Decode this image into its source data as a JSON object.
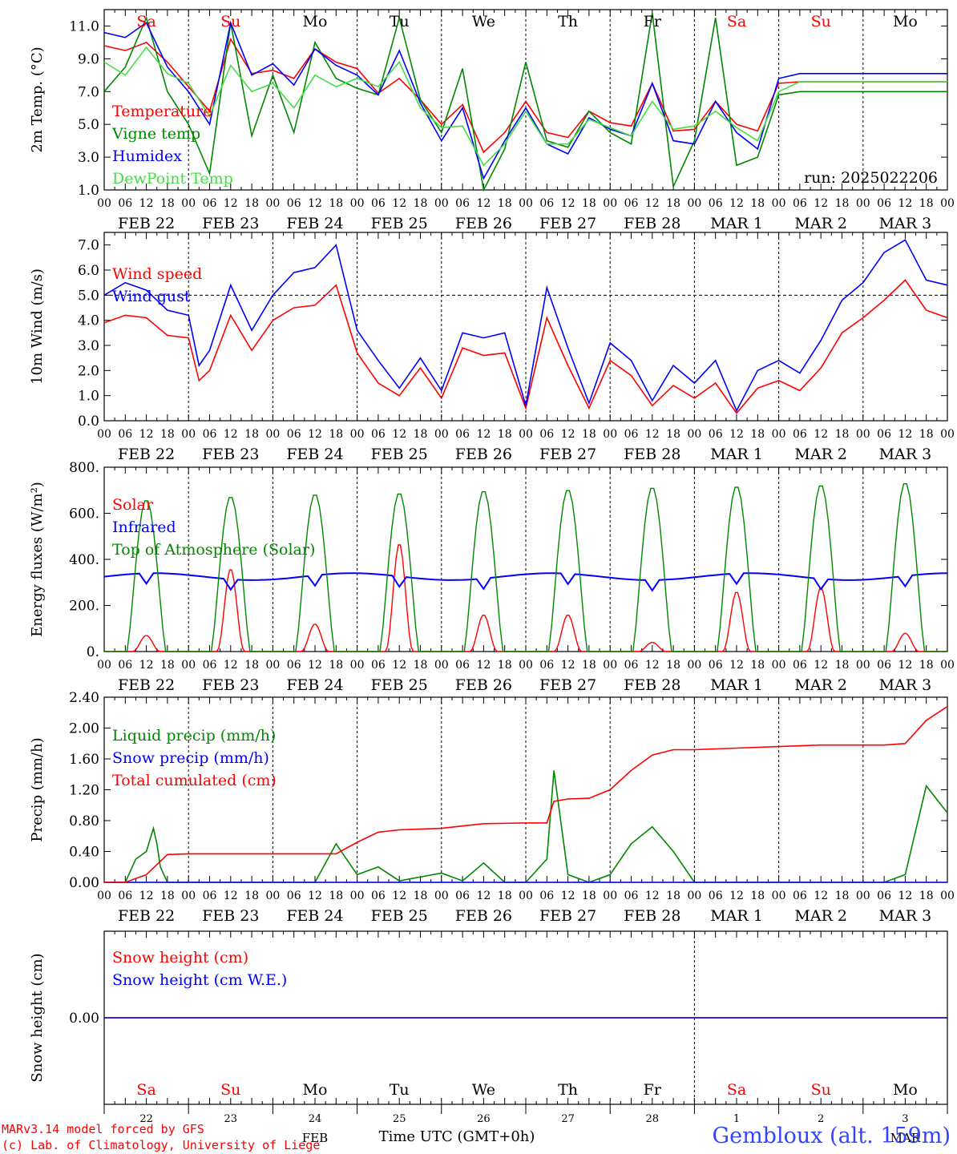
{
  "chart_data": [
    {
      "type": "line",
      "ylabel": "2m Temp. (°C)",
      "ylim": [
        1.0,
        12.0
      ],
      "yticks": [
        "1.0",
        "3.0",
        "5.0",
        "7.0",
        "9.0",
        "11.0"
      ],
      "grid": "vertical day lines",
      "annotation": "run: 2025022206",
      "legend_position": "left",
      "series": [
        {
          "name": "Temperature",
          "color": "#ff0000",
          "x": [
            0,
            6,
            12,
            18,
            24,
            30,
            36,
            42,
            48,
            54,
            60,
            66,
            72,
            78,
            84,
            90,
            96,
            102,
            108,
            114,
            120,
            126,
            132,
            138,
            144,
            150,
            156,
            162,
            168,
            174,
            180,
            186,
            192,
            198,
            204,
            210,
            216,
            222,
            228,
            234,
            240
          ],
          "values": [
            9.8,
            9.5,
            10.0,
            8.8,
            7.3,
            5.8,
            10.2,
            8.1,
            8.3,
            7.8,
            9.6,
            8.8,
            8.4,
            6.9,
            7.8,
            6.5,
            5.0,
            6.2,
            3.3,
            4.5,
            6.4,
            4.5,
            4.2,
            5.8,
            5.1,
            4.9,
            7.5,
            4.6,
            4.7,
            6.4,
            5.0,
            4.6,
            7.5,
            7.6,
            7.6,
            7.6,
            7.6,
            7.6,
            7.6,
            7.6,
            7.6
          ]
        },
        {
          "name": "Vigne temp",
          "color": "#008800",
          "x": [
            0,
            6,
            12,
            18,
            24,
            30,
            36,
            42,
            48,
            54,
            60,
            66,
            72,
            78,
            84,
            90,
            96,
            102,
            108,
            114,
            120,
            126,
            132,
            138,
            144,
            150,
            156,
            162,
            168,
            174,
            180,
            186,
            192,
            198,
            204,
            210,
            216,
            222,
            228,
            234,
            240
          ],
          "values": [
            7.0,
            8.5,
            11.5,
            7.0,
            5.0,
            2.0,
            11.2,
            4.3,
            8.0,
            4.5,
            10.0,
            7.8,
            7.2,
            6.8,
            11.5,
            6.5,
            4.5,
            8.4,
            1.0,
            3.5,
            8.8,
            4.0,
            3.6,
            5.8,
            4.5,
            3.8,
            11.8,
            1.2,
            4.0,
            11.5,
            2.5,
            3.0,
            6.8,
            7.0,
            7.0,
            7.0,
            7.0,
            7.0,
            7.0,
            7.0,
            7.0
          ]
        },
        {
          "name": "Humidex",
          "color": "#0000ff",
          "x": [
            0,
            6,
            12,
            18,
            24,
            30,
            36,
            42,
            48,
            54,
            60,
            66,
            72,
            78,
            84,
            90,
            96,
            102,
            108,
            114,
            120,
            126,
            132,
            138,
            144,
            150,
            156,
            162,
            168,
            174,
            180,
            186,
            192,
            198,
            204,
            210,
            216,
            222,
            228,
            234,
            240
          ],
          "values": [
            10.6,
            10.3,
            11.2,
            8.5,
            7.0,
            5.0,
            11.2,
            8.0,
            8.7,
            7.4,
            9.6,
            8.6,
            8.0,
            6.8,
            9.5,
            6.3,
            4.0,
            6.0,
            1.7,
            4.0,
            6.0,
            3.8,
            3.2,
            5.4,
            4.7,
            4.3,
            7.5,
            4.0,
            3.8,
            6.4,
            4.5,
            3.5,
            7.8,
            8.1,
            8.1,
            8.1,
            8.1,
            8.1,
            8.1,
            8.1,
            8.1
          ]
        },
        {
          "name": "DewPoint Temp",
          "color": "#44dd44",
          "x": [
            0,
            6,
            12,
            18,
            24,
            30,
            36,
            42,
            48,
            54,
            60,
            66,
            72,
            78,
            84,
            90,
            96,
            102,
            108,
            114,
            120,
            126,
            132,
            138,
            144,
            150,
            156,
            162,
            168,
            174,
            180,
            186,
            192,
            198,
            204,
            210,
            216,
            222,
            228,
            234,
            240
          ],
          "values": [
            8.8,
            8.0,
            9.7,
            8.1,
            7.5,
            5.5,
            8.6,
            7.0,
            7.5,
            6.0,
            8.0,
            7.3,
            7.8,
            7.3,
            8.8,
            6.0,
            4.8,
            4.9,
            2.5,
            3.8,
            5.8,
            3.8,
            3.8,
            5.3,
            4.8,
            4.3,
            6.4,
            4.7,
            4.9,
            5.8,
            4.8,
            4.0,
            7.0,
            7.6,
            7.6,
            7.6,
            7.6,
            7.6,
            7.6,
            7.6,
            7.6
          ]
        }
      ]
    },
    {
      "type": "line",
      "ylabel": "10m Wind (m/s)",
      "ylim": [
        0.0,
        7.5
      ],
      "yticks": [
        "0.0",
        "1.0",
        "2.0",
        "3.0",
        "4.0",
        "5.0",
        "6.0",
        "7.0"
      ],
      "reference_line": 5.0,
      "legend_position": "left",
      "series": [
        {
          "name": "Wind speed",
          "color": "#ff0000",
          "x": [
            0,
            6,
            12,
            18,
            24,
            27,
            30,
            36,
            42,
            48,
            54,
            60,
            66,
            72,
            78,
            84,
            90,
            96,
            102,
            108,
            114,
            120,
            126,
            132,
            138,
            144,
            150,
            156,
            162,
            168,
            174,
            180,
            186,
            192,
            198,
            204,
            210,
            216,
            222,
            228,
            234,
            240
          ],
          "values": [
            3.9,
            4.2,
            4.1,
            3.4,
            3.3,
            1.6,
            2.0,
            4.2,
            2.8,
            4.0,
            4.5,
            4.6,
            5.4,
            2.7,
            1.5,
            1.0,
            2.1,
            0.9,
            2.9,
            2.6,
            2.7,
            0.5,
            4.1,
            2.2,
            0.5,
            2.4,
            1.8,
            0.6,
            1.4,
            0.9,
            1.5,
            0.3,
            1.3,
            1.6,
            1.2,
            2.1,
            3.5,
            4.1,
            4.8,
            5.6,
            4.4,
            4.1
          ]
        },
        {
          "name": "Wind gust",
          "color": "#0000ff",
          "x": [
            0,
            6,
            12,
            18,
            24,
            27,
            30,
            36,
            42,
            48,
            54,
            60,
            66,
            72,
            78,
            84,
            90,
            96,
            102,
            108,
            114,
            120,
            126,
            132,
            138,
            144,
            150,
            156,
            162,
            168,
            174,
            180,
            186,
            192,
            198,
            204,
            210,
            216,
            222,
            228,
            234,
            240
          ],
          "values": [
            5.0,
            5.5,
            5.2,
            4.4,
            4.2,
            2.2,
            2.8,
            5.4,
            3.6,
            5.0,
            5.9,
            6.1,
            7.0,
            3.6,
            2.4,
            1.3,
            2.5,
            1.2,
            3.5,
            3.3,
            3.5,
            0.6,
            5.3,
            2.9,
            0.7,
            3.1,
            2.4,
            0.8,
            2.2,
            1.5,
            2.4,
            0.4,
            2.0,
            2.4,
            1.9,
            3.2,
            4.8,
            5.5,
            6.7,
            7.2,
            5.6,
            5.4
          ]
        }
      ]
    },
    {
      "type": "line",
      "ylabel": "Energy fluxes (W/m²)",
      "ylim": [
        0,
        800
      ],
      "yticks": [
        "0.",
        "200.",
        "400.",
        "600.",
        "800."
      ],
      "legend_position": "left",
      "series": [
        {
          "name": "Solar",
          "color": "#ff0000",
          "daily_peaks": [
            70,
            360,
            120,
            470,
            160,
            160,
            40,
            260,
            280,
            80
          ]
        },
        {
          "name": "Infrared",
          "color": "#0000ff",
          "values_note": "around 300–345 W/m² throughout",
          "level": 325
        },
        {
          "name": "Top of Atmosphere (Solar)",
          "color": "#008800",
          "daily_peaks": [
            660,
            675,
            685,
            690,
            700,
            705,
            715,
            720,
            725,
            735
          ]
        }
      ]
    },
    {
      "type": "line",
      "ylabel": "Precip (mm/h)",
      "ylim": [
        0.0,
        2.4
      ],
      "yticks": [
        "0.00",
        "0.40",
        "0.80",
        "1.20",
        "1.60",
        "2.00",
        "2.40"
      ],
      "legend_position": "left",
      "series": [
        {
          "name": "Liquid precip (mm/h)",
          "color": "#008800",
          "x": [
            0,
            6,
            9,
            12,
            14,
            15,
            16,
            18,
            24,
            36,
            48,
            60,
            66,
            72,
            78,
            84,
            96,
            102,
            108,
            114,
            120,
            126,
            128,
            132,
            138,
            144,
            150,
            156,
            162,
            168,
            174,
            180,
            192,
            204,
            216,
            222,
            228,
            234,
            240
          ],
          "values": [
            0,
            0,
            0.3,
            0.4,
            0.7,
            0.5,
            0.2,
            0,
            0,
            0,
            0,
            0,
            0.5,
            0.1,
            0.2,
            0.02,
            0.12,
            0.02,
            0.25,
            0,
            0,
            0.3,
            1.45,
            0.1,
            0,
            0.1,
            0.5,
            0.72,
            0.4,
            0,
            0,
            0,
            0,
            0,
            0,
            0,
            0.1,
            1.25,
            0.9
          ]
        },
        {
          "name": "Snow precip (mm/h)",
          "color": "#0000ff",
          "x": [
            0,
            240
          ],
          "values": [
            0,
            0
          ]
        },
        {
          "name": "Total cumulated (cm)",
          "color": "#ff0000",
          "x": [
            0,
            6,
            12,
            18,
            24,
            36,
            48,
            60,
            66,
            72,
            78,
            84,
            96,
            102,
            108,
            120,
            126,
            128,
            132,
            138,
            144,
            150,
            156,
            162,
            168,
            174,
            180,
            192,
            204,
            216,
            222,
            228,
            234,
            240
          ],
          "values": [
            0,
            0,
            0.1,
            0.36,
            0.37,
            0.37,
            0.37,
            0.37,
            0.37,
            0.52,
            0.65,
            0.68,
            0.7,
            0.73,
            0.76,
            0.77,
            0.77,
            1.05,
            1.08,
            1.09,
            1.2,
            1.45,
            1.65,
            1.72,
            1.72,
            1.73,
            1.74,
            1.76,
            1.78,
            1.78,
            1.78,
            1.8,
            2.1,
            2.28
          ]
        }
      ]
    },
    {
      "type": "line",
      "ylabel": "Snow height (cm)",
      "yticks": [
        "0.00"
      ],
      "legend_position": "left",
      "series": [
        {
          "name": "Snow height (cm)",
          "color": "#ff0000",
          "x": [
            0,
            240
          ],
          "values": [
            0,
            0
          ]
        },
        {
          "name": "Snow height (cm W.E.)",
          "color": "#0000ff",
          "x": [
            0,
            240
          ],
          "values": [
            0,
            0
          ]
        }
      ]
    }
  ],
  "x_axis": {
    "hour_labels": [
      "00",
      "06",
      "12",
      "18"
    ],
    "date_labels": [
      "FEB 22",
      "FEB 23",
      "FEB 24",
      "FEB 25",
      "FEB 26",
      "FEB 27",
      "FEB 28",
      "MAR  1",
      "MAR  2",
      "MAR  3"
    ],
    "day_names": [
      "Sa",
      "Su",
      "Mo",
      "Tu",
      "We",
      "Th",
      "Fr",
      "Sa",
      "Su",
      "Mo"
    ],
    "day_name_colors": [
      "#ff0000",
      "#ff0000",
      "#000000",
      "#000000",
      "#000000",
      "#000000",
      "#000000",
      "#ff0000",
      "#ff0000",
      "#000000"
    ],
    "day_numbers": [
      "22",
      "23",
      "24",
      "25",
      "26",
      "27",
      "28",
      "1",
      "2",
      "3"
    ],
    "feb_label": "FEB",
    "mar_label": "MAR",
    "xlabel": "Time UTC (GMT+0h)"
  },
  "footer": {
    "credit_line1": "MARv3.14 model forced by GFS",
    "credit_line2": "(c) Lab. of Climatology, University of Liege",
    "station": "Gembloux (alt. 159m)"
  }
}
